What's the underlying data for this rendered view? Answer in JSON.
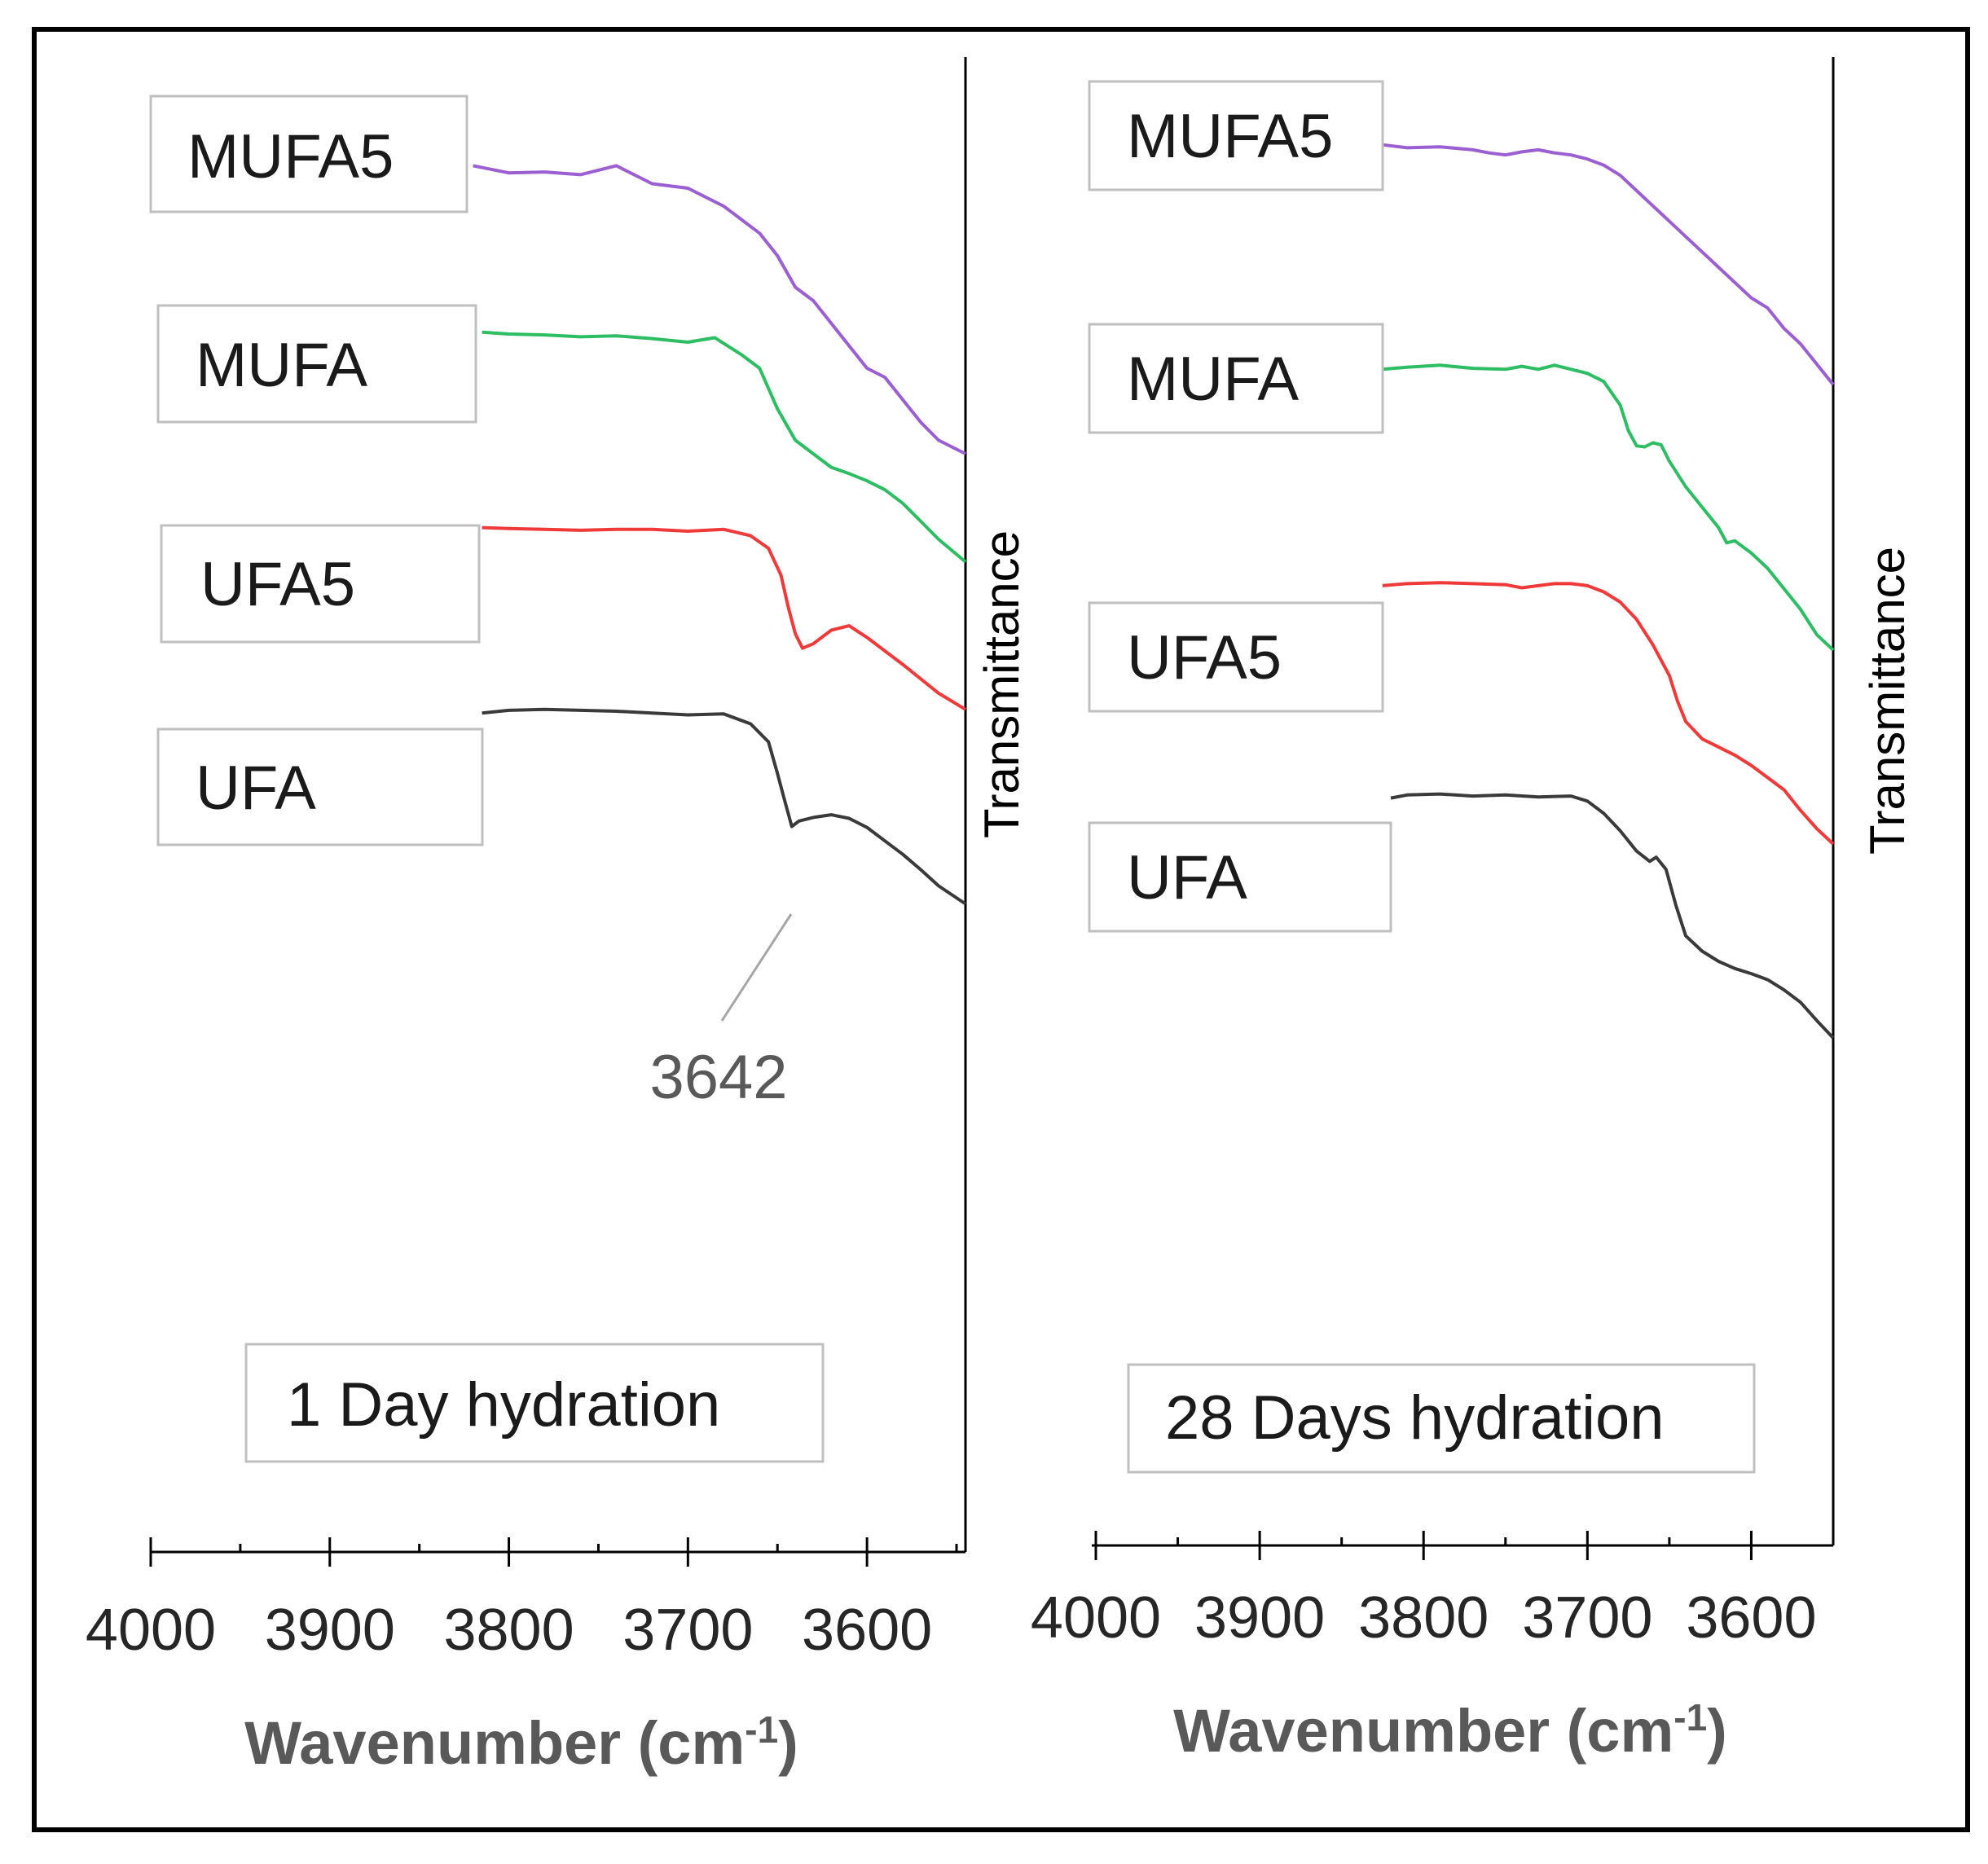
{
  "colors": {
    "MUFA5": "#9b5fd1",
    "MUFA": "#2dbd62",
    "UFA5": "#f03a3a",
    "UFA": "#3a3a3a",
    "axis": "#000000",
    "box": "#bfbfbf",
    "annotation_line": "#a6a6a6"
  },
  "chart_data": [
    {
      "type": "line",
      "title": "1 Day hydration",
      "xlabel": "Wavenumber (cm",
      "xlabel_sup": "-1",
      "xlabel_end": ")",
      "ylabel": "Transmittance",
      "xlim": [
        4000,
        3545
      ],
      "x_ticks": [
        4000,
        3900,
        3800,
        3700,
        3600
      ],
      "ylim": [
        0,
        100
      ],
      "y_ticks_shown": false,
      "legend_placement": "left-inline",
      "annotations": [
        {
          "text": "3642",
          "x": 3642,
          "series": "UFA"
        }
      ],
      "series": [
        {
          "name": "MUFA5",
          "x": [
            3820,
            3800,
            3780,
            3760,
            3740,
            3720,
            3700,
            3680,
            3660,
            3650,
            3640,
            3630,
            3620,
            3610,
            3600,
            3590,
            3580,
            3570,
            3560,
            3545
          ],
          "y": [
            92.0,
            91.2,
            91.3,
            91.0,
            92.0,
            90.0,
            89.5,
            87.5,
            84.5,
            82.0,
            78.5,
            77.0,
            74.5,
            72.0,
            69.5,
            68.5,
            66.0,
            63.5,
            61.5,
            60.0
          ]
        },
        {
          "name": "MUFA",
          "x": [
            3815,
            3800,
            3780,
            3760,
            3740,
            3720,
            3700,
            3685,
            3670,
            3660,
            3650,
            3640,
            3630,
            3620,
            3610,
            3600,
            3590,
            3580,
            3570,
            3560,
            3545
          ],
          "y": [
            73.5,
            73.3,
            73.2,
            73.0,
            73.1,
            72.8,
            72.4,
            72.9,
            71.0,
            69.5,
            65.0,
            61.5,
            60.0,
            58.5,
            57.8,
            57.0,
            56.0,
            54.5,
            52.5,
            50.5,
            48.0
          ]
        },
        {
          "name": "UFA5",
          "x": [
            3815,
            3800,
            3780,
            3760,
            3740,
            3720,
            3700,
            3680,
            3665,
            3655,
            3648,
            3644,
            3640,
            3636,
            3630,
            3620,
            3610,
            3600,
            3590,
            3580,
            3570,
            3560,
            3545
          ],
          "y": [
            51.8,
            51.7,
            51.6,
            51.5,
            51.6,
            51.6,
            51.4,
            51.6,
            50.9,
            49.5,
            46.5,
            43.0,
            40.0,
            38.4,
            38.9,
            40.4,
            40.9,
            39.6,
            38.1,
            36.6,
            35.0,
            33.4,
            31.6
          ]
        },
        {
          "name": "UFA",
          "x": [
            3815,
            3800,
            3780,
            3760,
            3740,
            3720,
            3700,
            3680,
            3665,
            3655,
            3650,
            3646,
            3642,
            3638,
            3630,
            3620,
            3610,
            3600,
            3590,
            3580,
            3570,
            3560,
            3545
          ],
          "y": [
            31.2,
            31.5,
            31.6,
            31.5,
            31.4,
            31.2,
            31.0,
            31.1,
            30.0,
            28.0,
            24.5,
            21.5,
            18.6,
            19.2,
            19.6,
            19.9,
            19.5,
            18.5,
            17.0,
            15.5,
            13.8,
            12.0,
            10.0
          ]
        }
      ]
    },
    {
      "type": "line",
      "title": "28 Days hydration",
      "xlabel": "Wavenumber (cm",
      "xlabel_sup": "-1",
      "xlabel_end": ")",
      "ylabel": "Transmittance",
      "xlim": [
        4000,
        3550
      ],
      "x_ticks": [
        4000,
        3900,
        3800,
        3700,
        3600
      ],
      "ylim": [
        0,
        100
      ],
      "y_ticks_shown": false,
      "legend_placement": "left-inline",
      "series": [
        {
          "name": "MUFA5",
          "x": [
            3825,
            3810,
            3790,
            3770,
            3760,
            3750,
            3740,
            3730,
            3720,
            3710,
            3700,
            3690,
            3680,
            3670,
            3660,
            3650,
            3640,
            3630,
            3620,
            3610,
            3600,
            3590,
            3580,
            3570,
            3560,
            3550
          ],
          "y": [
            95.0,
            94.7,
            94.8,
            94.5,
            94.2,
            94.0,
            94.3,
            94.5,
            94.2,
            94.0,
            93.6,
            93.0,
            92.0,
            90.5,
            89.0,
            87.5,
            86.0,
            84.5,
            83.0,
            81.5,
            80.0,
            79.0,
            77.0,
            75.5,
            73.5,
            71.5
          ]
        },
        {
          "name": "MUFA",
          "x": [
            3825,
            3810,
            3790,
            3770,
            3750,
            3740,
            3730,
            3720,
            3700,
            3690,
            3680,
            3675,
            3670,
            3665,
            3660,
            3655,
            3650,
            3640,
            3630,
            3620,
            3615,
            3610,
            3600,
            3590,
            3580,
            3570,
            3560,
            3550
          ],
          "y": [
            73.0,
            73.2,
            73.4,
            73.1,
            73.0,
            73.3,
            73.0,
            73.4,
            72.6,
            71.8,
            69.5,
            67.0,
            65.5,
            65.4,
            65.8,
            65.6,
            64.0,
            61.5,
            59.5,
            57.5,
            56.0,
            56.2,
            55.0,
            53.5,
            51.5,
            49.5,
            47.0,
            45.5
          ]
        },
        {
          "name": "UFA5",
          "x": [
            3825,
            3810,
            3790,
            3770,
            3750,
            3740,
            3730,
            3720,
            3710,
            3700,
            3690,
            3680,
            3670,
            3660,
            3650,
            3645,
            3640,
            3630,
            3620,
            3610,
            3600,
            3590,
            3580,
            3570,
            3560,
            3550
          ],
          "y": [
            51.8,
            52.0,
            52.1,
            52.0,
            51.9,
            51.6,
            51.8,
            52.0,
            52.0,
            51.8,
            51.2,
            50.2,
            48.5,
            46.0,
            43.0,
            40.5,
            38.5,
            36.8,
            36.0,
            35.2,
            34.2,
            33.0,
            31.8,
            29.8,
            28.0,
            26.5
          ]
        },
        {
          "name": "UFA",
          "x": [
            3820,
            3810,
            3790,
            3770,
            3750,
            3730,
            3710,
            3700,
            3690,
            3680,
            3670,
            3662,
            3658,
            3652,
            3646,
            3640,
            3630,
            3620,
            3610,
            3600,
            3590,
            3580,
            3570,
            3560,
            3550
          ],
          "y": [
            31.0,
            31.3,
            31.4,
            31.2,
            31.3,
            31.1,
            31.2,
            30.7,
            29.5,
            27.8,
            25.8,
            24.8,
            25.2,
            24.0,
            20.5,
            17.5,
            16.0,
            15.0,
            14.3,
            13.8,
            13.2,
            12.2,
            11.0,
            9.2,
            7.5
          ]
        }
      ]
    }
  ]
}
